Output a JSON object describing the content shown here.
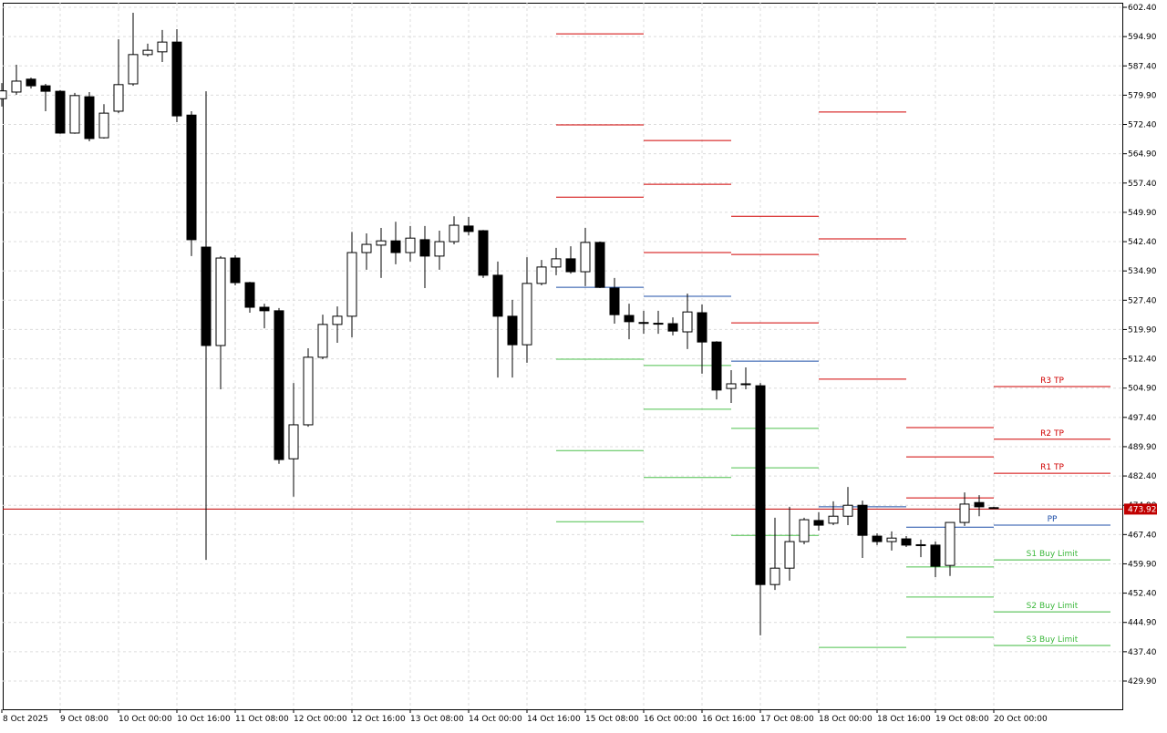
{
  "chart_data": {
    "type": "candlestick",
    "categories": [
      "8 Oct 2025",
      null,
      null,
      null,
      "9 Oct 08:00",
      null,
      null,
      null,
      "10 Oct 00:00",
      null,
      null,
      null,
      "10 Oct 16:00",
      null,
      null,
      null,
      "11 Oct 08:00",
      null,
      null,
      null,
      "12 Oct 00:00",
      null,
      null,
      null,
      "12 Oct 16:00",
      null,
      null,
      null,
      "13 Oct 08:00",
      null,
      null,
      null,
      "14 Oct 00:00",
      null,
      null,
      null,
      "14 Oct 16:00",
      null,
      null,
      null,
      "15 Oct 08:00",
      null,
      null,
      null,
      "16 Oct 00:00",
      null,
      null,
      null,
      "16 Oct 16:00",
      null,
      null,
      null,
      "17 Oct 08:00",
      null,
      null,
      null,
      "18 Oct 00:00",
      null,
      null,
      null,
      "18 Oct 16:00",
      null,
      null,
      null,
      "19 Oct 08:00",
      null,
      null,
      null,
      "20 Oct 00:00"
    ],
    "open": [
      579,
      580.7,
      584.0,
      582.3,
      580.9,
      570.2,
      579.5,
      569.0,
      575.8,
      582.8,
      590.3,
      591.0,
      593.5,
      574.8,
      541.0,
      515.8,
      538.2,
      531.9,
      525.6,
      524.7,
      486.8,
      495.5,
      512.8,
      521.2,
      523.3,
      539.6,
      541.5,
      542.6,
      539.6,
      542.9,
      538.7,
      542.4,
      546.4,
      545.2,
      533.8,
      523.3,
      516.0,
      531.7,
      535.9,
      538.0,
      534.7,
      542.2,
      530.5,
      523.5,
      521.7,
      521.4,
      521.4,
      519.3,
      524.2,
      516.7,
      504.8,
      505.9,
      505.5,
      454.6,
      458.8,
      465.6,
      471.0,
      470.3,
      472.1,
      474.9,
      467.0,
      465.6,
      466.3,
      464.8,
      464.7,
      459.5,
      470.5,
      475.6,
      474.3
    ],
    "high": [
      583,
      587.7,
      584.4,
      582.8,
      581.2,
      580.5,
      580.7,
      577.6,
      594.2,
      601.0,
      593.1,
      596.6,
      596.8,
      575.8,
      580.9,
      538.7,
      538.9,
      532.1,
      526.5,
      525.4,
      506.2,
      515.1,
      523.7,
      525.8,
      544.9,
      544.5,
      545.9,
      547.5,
      546.4,
      546.4,
      545.2,
      548.9,
      548.7,
      545.4,
      537.3,
      527.5,
      538.4,
      537.7,
      540.8,
      541.2,
      545.9,
      542.4,
      533.1,
      526.5,
      524.7,
      524.7,
      523.0,
      529.1,
      526.3,
      516.9,
      509.5,
      510.2,
      506.2,
      471.7,
      474.5,
      471.7,
      473.1,
      475.9,
      479.6,
      476.1,
      467.7,
      468.2,
      467.0,
      466.1,
      465.6,
      470.5,
      478.2,
      477.5,
      474.5
    ],
    "low": [
      577,
      580.0,
      581.6,
      575.8,
      570.0,
      570.0,
      568.1,
      568.8,
      575.3,
      582.3,
      589.8,
      588.4,
      573.0,
      538.7,
      460.9,
      504.6,
      531.2,
      524.2,
      520.2,
      485.5,
      477.1,
      495.0,
      512.3,
      516.5,
      517.9,
      535.2,
      533.1,
      536.6,
      537.3,
      530.5,
      535.2,
      541.7,
      544.0,
      533.1,
      507.6,
      507.6,
      511.4,
      531.2,
      533.8,
      534.2,
      531.0,
      530.5,
      521.4,
      517.4,
      518.8,
      518.8,
      518.4,
      514.9,
      508.6,
      502.0,
      501.1,
      504.6,
      441.6,
      453.2,
      455.6,
      464.9,
      468.4,
      469.8,
      469.8,
      461.4,
      464.7,
      463.3,
      464.2,
      461.6,
      456.5,
      456.8,
      469.6,
      472.1,
      474.0
    ],
    "close": [
      581,
      583.5,
      582.3,
      580.9,
      570.2,
      579.8,
      568.8,
      575.3,
      582.6,
      590.3,
      591.4,
      593.5,
      574.6,
      542.9,
      515.8,
      538.2,
      531.9,
      525.6,
      524.7,
      486.6,
      495.5,
      512.8,
      521.2,
      523.3,
      539.6,
      541.7,
      542.6,
      539.6,
      543.3,
      538.7,
      542.4,
      546.6,
      545.0,
      533.8,
      523.3,
      516.0,
      531.7,
      535.9,
      538.0,
      534.7,
      542.2,
      530.7,
      523.7,
      521.9,
      521.6,
      521.5,
      519.5,
      524.4,
      516.7,
      504.4,
      506.0,
      506.0,
      454.6,
      458.8,
      465.6,
      471.2,
      469.8,
      472.1,
      474.9,
      467.2,
      465.6,
      466.5,
      464.7,
      464.7,
      459.3,
      470.5,
      475.2,
      474.5,
      474.2
    ],
    "up_color": "#ffffff",
    "down_color": "#000000",
    "ylim": [
      422.66,
      603.57
    ],
    "yticks": [
      {
        "value": 602.4,
        "label": "602.40"
      },
      {
        "value": 594.9,
        "label": "594.90"
      },
      {
        "value": 587.4,
        "label": "587.40"
      },
      {
        "value": 579.9,
        "label": "579.90"
      },
      {
        "value": 572.4,
        "label": "572.40"
      },
      {
        "value": 564.9,
        "label": "564.90"
      },
      {
        "value": 557.4,
        "label": "557.40"
      },
      {
        "value": 549.9,
        "label": "549.90"
      },
      {
        "value": 542.4,
        "label": "542.40"
      },
      {
        "value": 534.9,
        "label": "534.90"
      },
      {
        "value": 527.4,
        "label": "527.40"
      },
      {
        "value": 519.9,
        "label": "519.90"
      },
      {
        "value": 512.4,
        "label": "512.40"
      },
      {
        "value": 504.9,
        "label": "504.90"
      },
      {
        "value": 497.4,
        "label": "497.40"
      },
      {
        "value": 489.9,
        "label": "489.90"
      },
      {
        "value": 482.4,
        "label": "482.40"
      },
      {
        "value": 474.9,
        "label": "474.90"
      },
      {
        "value": 467.4,
        "label": "467.40"
      },
      {
        "value": 459.9,
        "label": "459.90"
      },
      {
        "value": 452.4,
        "label": "452.40"
      },
      {
        "value": 444.9,
        "label": "444.90"
      },
      {
        "value": 437.4,
        "label": "437.40"
      },
      {
        "value": 429.9,
        "label": "429.90"
      }
    ],
    "grid": true,
    "current_price": {
      "value": 473.92,
      "label": "473.92",
      "color": "#c00000"
    },
    "levels": [
      {
        "from": 38,
        "to": 44,
        "lines": [
          {
            "value": 595.6,
            "color": "#d00000"
          },
          {
            "value": 572.3,
            "color": "#d00000"
          },
          {
            "value": 553.8,
            "color": "#d00000"
          },
          {
            "value": 530.7,
            "color": "#1f4fa8"
          },
          {
            "value": 512.3,
            "color": "#4cc04c"
          },
          {
            "value": 488.9,
            "color": "#4cc04c"
          },
          {
            "value": 470.7,
            "color": "#4cc04c"
          }
        ]
      },
      {
        "from": 44,
        "to": 50,
        "lines": [
          {
            "value": 568.3,
            "color": "#d00000"
          },
          {
            "value": 557.1,
            "color": "#d00000"
          },
          {
            "value": 539.6,
            "color": "#d00000"
          },
          {
            "value": 528.4,
            "color": "#1f4fa8"
          },
          {
            "value": 510.7,
            "color": "#4cc04c"
          },
          {
            "value": 499.5,
            "color": "#4cc04c"
          },
          {
            "value": 482.0,
            "color": "#4cc04c"
          }
        ]
      },
      {
        "from": 50,
        "to": 56,
        "lines": [
          {
            "value": 548.9,
            "color": "#d00000"
          },
          {
            "value": 539.1,
            "color": "#d00000"
          },
          {
            "value": 521.6,
            "color": "#d00000"
          },
          {
            "value": 511.8,
            "color": "#1f4fa8"
          },
          {
            "value": 494.6,
            "color": "#4cc04c"
          },
          {
            "value": 484.5,
            "color": "#4cc04c"
          },
          {
            "value": 467.2,
            "color": "#4cc04c"
          }
        ]
      },
      {
        "from": 56,
        "to": 62,
        "lines": [
          {
            "value": 575.6,
            "color": "#d00000"
          },
          {
            "value": 543.1,
            "color": "#d00000"
          },
          {
            "value": 507.2,
            "color": "#d00000"
          },
          {
            "value": 474.5,
            "color": "#1f4fa8"
          },
          {
            "value": 438.5,
            "color": "#4cc04c"
          }
        ]
      },
      {
        "from": 62,
        "to": 68,
        "lines": [
          {
            "value": 494.8,
            "color": "#d00000"
          },
          {
            "value": 487.3,
            "color": "#d00000"
          },
          {
            "value": 476.8,
            "color": "#d00000"
          },
          {
            "value": 469.3,
            "color": "#1f4fa8"
          },
          {
            "value": 459.1,
            "color": "#4cc04c"
          },
          {
            "value": 451.4,
            "color": "#4cc04c"
          },
          {
            "value": 441.1,
            "color": "#4cc04c"
          }
        ]
      },
      {
        "from": 68,
        "to": 76,
        "lines": [
          {
            "value": 505.3,
            "color": "#d00000",
            "label": "R3 TP"
          },
          {
            "value": 491.8,
            "color": "#d00000",
            "label": "R2 TP"
          },
          {
            "value": 483.1,
            "color": "#d00000",
            "label": "R1 TP"
          },
          {
            "value": 469.8,
            "color": "#1f4fa8",
            "label": "PP"
          },
          {
            "value": 460.9,
            "color": "#3cb83c",
            "label": "S1 Buy Limit"
          },
          {
            "value": 447.6,
            "color": "#3cb83c",
            "label": "S2 Buy Limit"
          },
          {
            "value": 439.0,
            "color": "#3cb83c",
            "label": "S3 Buy Limit"
          }
        ]
      }
    ]
  }
}
